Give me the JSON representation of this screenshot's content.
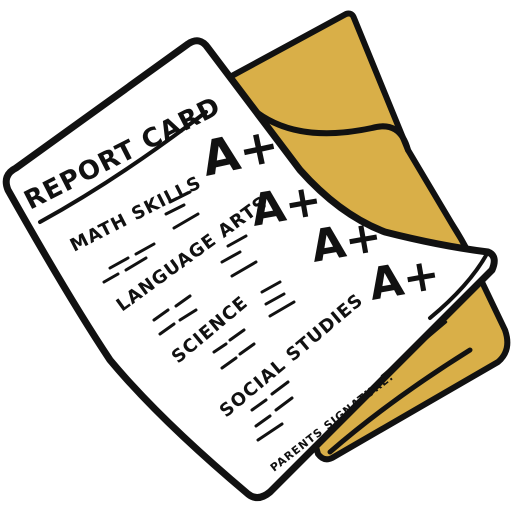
{
  "report_card": {
    "title": "REPORT CARD",
    "subjects": [
      {
        "name": "MATH SKILLS",
        "grade": "A+"
      },
      {
        "name": "LANGUAGE ARTS",
        "grade": "A+"
      },
      {
        "name": "SCIENCE",
        "grade": "A+"
      },
      {
        "name": "SOCIAL STUDIES",
        "grade": "A+"
      }
    ],
    "signature_label": "PARENTS SIGNATURE:"
  },
  "colors": {
    "folder": "#D9AF48",
    "paper": "#FFFFFF",
    "ink": "#111111"
  }
}
